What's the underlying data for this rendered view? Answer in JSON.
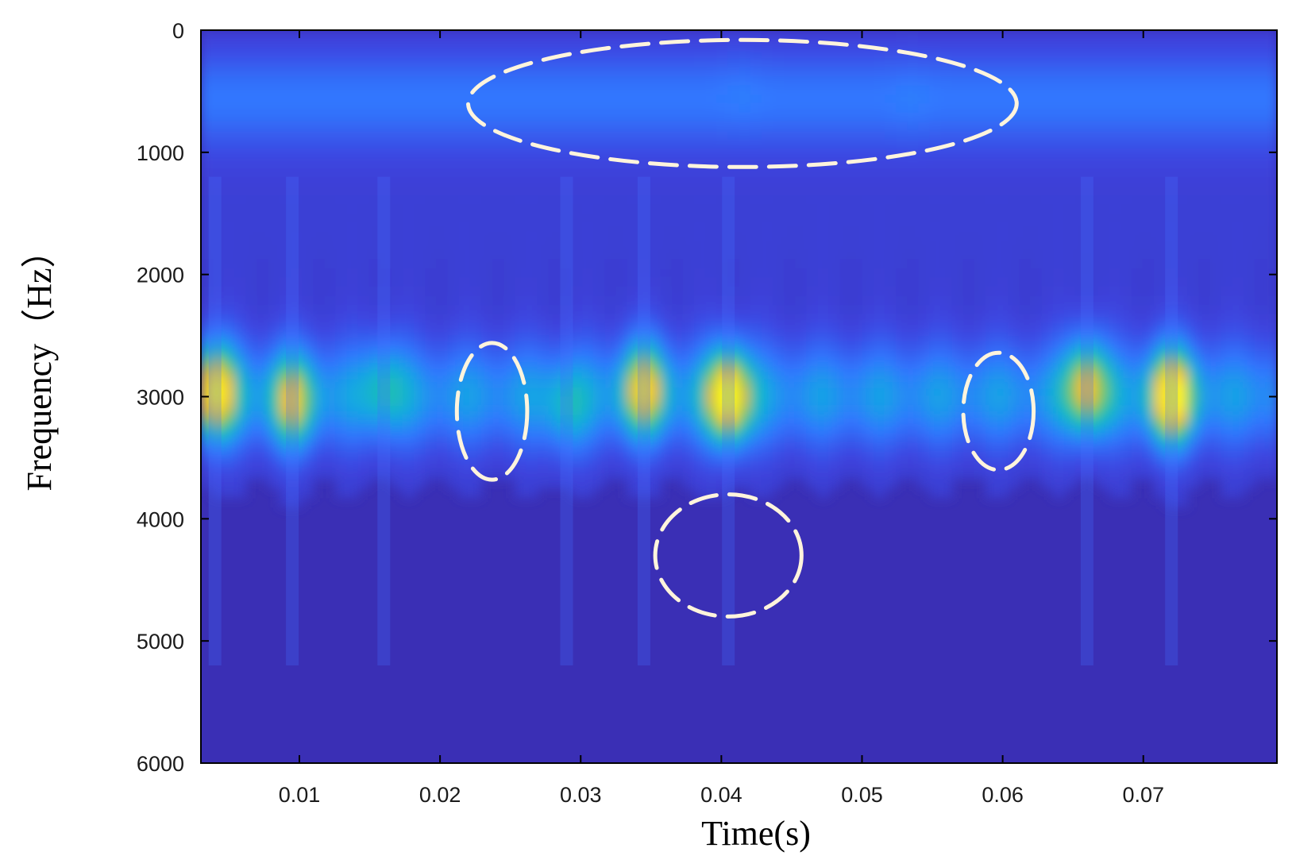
{
  "chart_data": {
    "type": "heatmap",
    "title": "",
    "xlabel": "Time(s)",
    "ylabel": "Frequency（Hz）",
    "xlim": [
      0.003,
      0.0795
    ],
    "ylim": [
      0,
      6000
    ],
    "y_reversed": true,
    "x_ticks": [
      {
        "value": 0.01,
        "label": "0.01"
      },
      {
        "value": 0.02,
        "label": "0.02"
      },
      {
        "value": 0.03,
        "label": "0.03"
      },
      {
        "value": 0.04,
        "label": "0.04"
      },
      {
        "value": 0.05,
        "label": "0.05"
      },
      {
        "value": 0.06,
        "label": "0.06"
      },
      {
        "value": 0.07,
        "label": "0.07"
      }
    ],
    "y_ticks": [
      {
        "value": 0,
        "label": "0"
      },
      {
        "value": 1000,
        "label": "1000"
      },
      {
        "value": 2000,
        "label": "2000"
      },
      {
        "value": 3000,
        "label": "3000"
      },
      {
        "value": 4000,
        "label": "4000"
      },
      {
        "value": 5000,
        "label": "5000"
      },
      {
        "value": 6000,
        "label": "6000"
      }
    ],
    "grid": false,
    "colormap": "parula",
    "energy_bands": [
      {
        "name": "low",
        "freq_center": 550,
        "freq_width": 300,
        "strength": 0.25
      },
      {
        "name": "main",
        "freq_center": 3000,
        "freq_width": 330,
        "strength": 0.35
      }
    ],
    "hot_spots": [
      {
        "time": 0.004,
        "freq": 2950,
        "intensity": 0.88
      },
      {
        "time": 0.0095,
        "freq": 3050,
        "intensity": 0.72
      },
      {
        "time": 0.016,
        "freq": 2900,
        "intensity": 0.5
      },
      {
        "time": 0.029,
        "freq": 3150,
        "intensity": 0.48
      },
      {
        "time": 0.0345,
        "freq": 2920,
        "intensity": 0.78
      },
      {
        "time": 0.0405,
        "freq": 3000,
        "intensity": 0.95
      },
      {
        "time": 0.066,
        "freq": 2900,
        "intensity": 0.78
      },
      {
        "time": 0.072,
        "freq": 3000,
        "intensity": 0.93
      },
      {
        "time": 0.0415,
        "freq": 450,
        "intensity": 0.32
      },
      {
        "time": 0.0535,
        "freq": 550,
        "intensity": 0.32
      }
    ],
    "annotations": [
      {
        "shape": "dashed-ellipse",
        "time_center": 0.0415,
        "freq_center": 600,
        "time_halfwidth": 0.0195,
        "freq_halfwidth": 520
      },
      {
        "shape": "dashed-ellipse",
        "time_center": 0.0237,
        "freq_center": 3120,
        "time_halfwidth": 0.0025,
        "freq_halfwidth": 560
      },
      {
        "shape": "dashed-ellipse",
        "time_center": 0.0597,
        "freq_center": 3120,
        "time_halfwidth": 0.0025,
        "freq_halfwidth": 480
      },
      {
        "shape": "dashed-ellipse",
        "time_center": 0.0405,
        "freq_center": 4300,
        "time_halfwidth": 0.0052,
        "freq_halfwidth": 500
      }
    ],
    "annotation_color": "#FFF4DC",
    "background_color": "#3A2FB5"
  }
}
